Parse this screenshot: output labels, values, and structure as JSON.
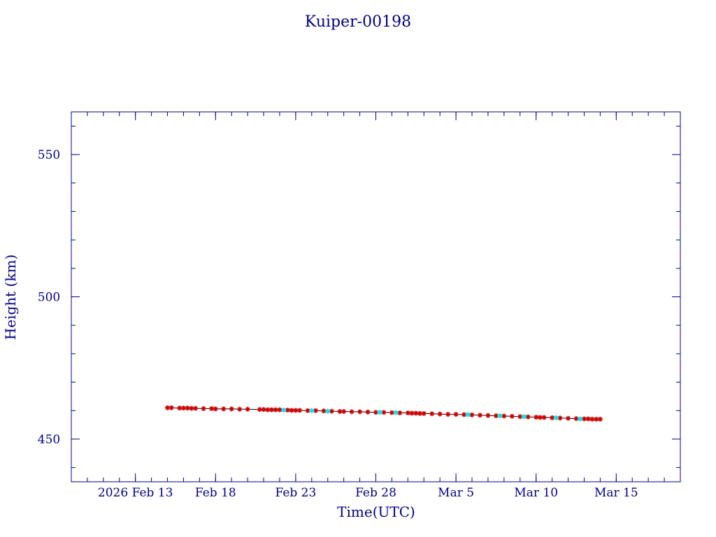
{
  "chart_data": {
    "type": "scatter",
    "title": "Kuiper-00198",
    "xlabel": "Time(UTC)",
    "ylabel": "Height (km)",
    "x_tick_labels": [
      "2026 Feb 13",
      "Feb 18",
      "Feb 23",
      "Feb 28",
      "Mar  5",
      "Mar 10",
      "Mar 15"
    ],
    "x_tick_dates": [
      "2026-02-13",
      "2026-02-18",
      "2026-02-23",
      "2026-02-28",
      "2026-03-05",
      "2026-03-10",
      "2026-03-15"
    ],
    "xlim": [
      "2026-02-09",
      "2026-03-19"
    ],
    "y_ticks": [
      450,
      500,
      550
    ],
    "ylim": [
      435,
      565
    ],
    "grid": false,
    "colors": {
      "axis": "#00008b",
      "line": "#000000",
      "series_red": "#cc0000",
      "series_cyan": "#00e5ee"
    },
    "series": [
      {
        "marker": "asterisk",
        "color": "#cc0000",
        "points": [
          [
            "2026-02-15",
            461.0
          ],
          [
            "2026-02-15T06:00",
            461.0
          ],
          [
            "2026-02-15T18:00",
            460.9
          ],
          [
            "2026-02-16",
            460.9
          ],
          [
            "2026-02-16T06:00",
            460.9
          ],
          [
            "2026-02-16T12:00",
            460.8
          ],
          [
            "2026-02-16T18:00",
            460.8
          ],
          [
            "2026-02-17T06:00",
            460.7
          ],
          [
            "2026-02-17T18:00",
            460.7
          ],
          [
            "2026-02-18",
            460.6
          ],
          [
            "2026-02-18T12:00",
            460.6
          ],
          [
            "2026-02-19",
            460.6
          ],
          [
            "2026-02-19T12:00",
            460.5
          ],
          [
            "2026-02-20",
            460.5
          ],
          [
            "2026-02-20T18:00",
            460.4
          ],
          [
            "2026-02-21",
            460.4
          ],
          [
            "2026-02-21T06:00",
            460.3
          ],
          [
            "2026-02-21T12:00",
            460.3
          ],
          [
            "2026-02-21T18:00",
            460.3
          ],
          [
            "2026-02-22",
            460.3
          ],
          [
            "2026-02-22T12:00",
            460.2
          ],
          [
            "2026-02-22T18:00",
            460.1
          ],
          [
            "2026-02-23",
            460.1
          ],
          [
            "2026-02-23T06:00",
            460.1
          ],
          [
            "2026-02-23T18:00",
            460.0
          ],
          [
            "2026-02-24T06:00",
            460.0
          ],
          [
            "2026-02-24T18:00",
            459.9
          ],
          [
            "2026-02-25T06:00",
            459.8
          ],
          [
            "2026-02-25T18:00",
            459.7
          ],
          [
            "2026-02-26",
            459.7
          ],
          [
            "2026-02-26T12:00",
            459.6
          ],
          [
            "2026-02-27",
            459.6
          ],
          [
            "2026-02-27T12:00",
            459.5
          ],
          [
            "2026-02-28",
            459.4
          ],
          [
            "2026-02-28T12:00",
            459.4
          ],
          [
            "2026-03-01",
            459.3
          ],
          [
            "2026-03-01T12:00",
            459.2
          ],
          [
            "2026-03-02",
            459.2
          ],
          [
            "2026-03-02T06:00",
            459.1
          ],
          [
            "2026-03-02T12:00",
            459.1
          ],
          [
            "2026-03-02T18:00",
            459.0
          ],
          [
            "2026-03-03",
            459.0
          ],
          [
            "2026-03-03T12:00",
            458.9
          ],
          [
            "2026-03-04",
            458.8
          ],
          [
            "2026-03-04T12:00",
            458.7
          ],
          [
            "2026-03-05",
            458.7
          ],
          [
            "2026-03-05T12:00",
            458.6
          ],
          [
            "2026-03-06",
            458.5
          ],
          [
            "2026-03-06T12:00",
            458.4
          ],
          [
            "2026-03-07",
            458.3
          ],
          [
            "2026-03-07T12:00",
            458.2
          ],
          [
            "2026-03-08",
            458.1
          ],
          [
            "2026-03-08T12:00",
            458.0
          ],
          [
            "2026-03-09",
            457.9
          ],
          [
            "2026-03-09T12:00",
            457.8
          ],
          [
            "2026-03-10",
            457.7
          ],
          [
            "2026-03-10T06:00",
            457.6
          ],
          [
            "2026-03-10T12:00",
            457.6
          ],
          [
            "2026-03-11",
            457.5
          ],
          [
            "2026-03-11T12:00",
            457.4
          ],
          [
            "2026-03-12",
            457.3
          ],
          [
            "2026-03-12T12:00",
            457.2
          ],
          [
            "2026-03-13",
            457.1
          ],
          [
            "2026-03-13T06:00",
            457.1
          ],
          [
            "2026-03-13T12:00",
            457.0
          ],
          [
            "2026-03-13T18:00",
            457.0
          ],
          [
            "2026-03-14",
            457.0
          ]
        ]
      },
      {
        "marker": "asterisk",
        "color": "#00e5ee",
        "points": [
          [
            "2026-02-22T06:00",
            460.2
          ],
          [
            "2026-02-24",
            460.0
          ],
          [
            "2026-02-25",
            459.8
          ],
          [
            "2026-02-28T06:00",
            459.4
          ],
          [
            "2026-03-01T06:00",
            459.3
          ],
          [
            "2026-03-05T18:00",
            458.6
          ],
          [
            "2026-03-07T18:00",
            458.2
          ],
          [
            "2026-03-09T06:00",
            457.9
          ],
          [
            "2026-03-11T06:00",
            457.5
          ],
          [
            "2026-03-12T18:00",
            457.1
          ]
        ]
      }
    ]
  }
}
